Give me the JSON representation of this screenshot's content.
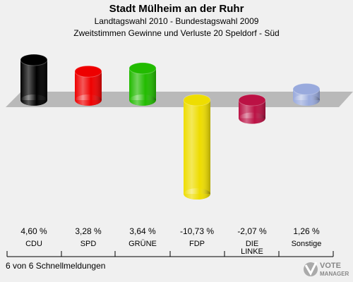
{
  "header": {
    "title": "Stadt Mülheim an der Ruhr",
    "subtitle1": "Landtagswahl 2010 - Bundestagswahl 2009",
    "subtitle2": "Zweitstimmen Gewinne und Verluste 20 Speldorf - Süd"
  },
  "chart_data": {
    "type": "bar",
    "categories": [
      "CDU",
      "SPD",
      "GRÜNE",
      "FDP",
      "DIE LINKE",
      "Sonstige"
    ],
    "values": [
      4.6,
      3.28,
      3.64,
      -10.73,
      -2.07,
      1.26
    ],
    "value_labels": [
      "4,60 %",
      "3,28 %",
      "3,64 %",
      "-10,73 %",
      "-2,07 %",
      "1,26 %"
    ],
    "colors": [
      "#000000",
      "#ee0000",
      "#22bb00",
      "#eedd00",
      "#bb1144",
      "#99aadd"
    ],
    "ylim": [
      -10.73,
      4.6
    ],
    "grid": false,
    "legend": "none"
  },
  "footer": {
    "note": "6 von 6 Schnellmeldungen",
    "brand_line1": "VOTE",
    "brand_line2": "MANAGER"
  }
}
